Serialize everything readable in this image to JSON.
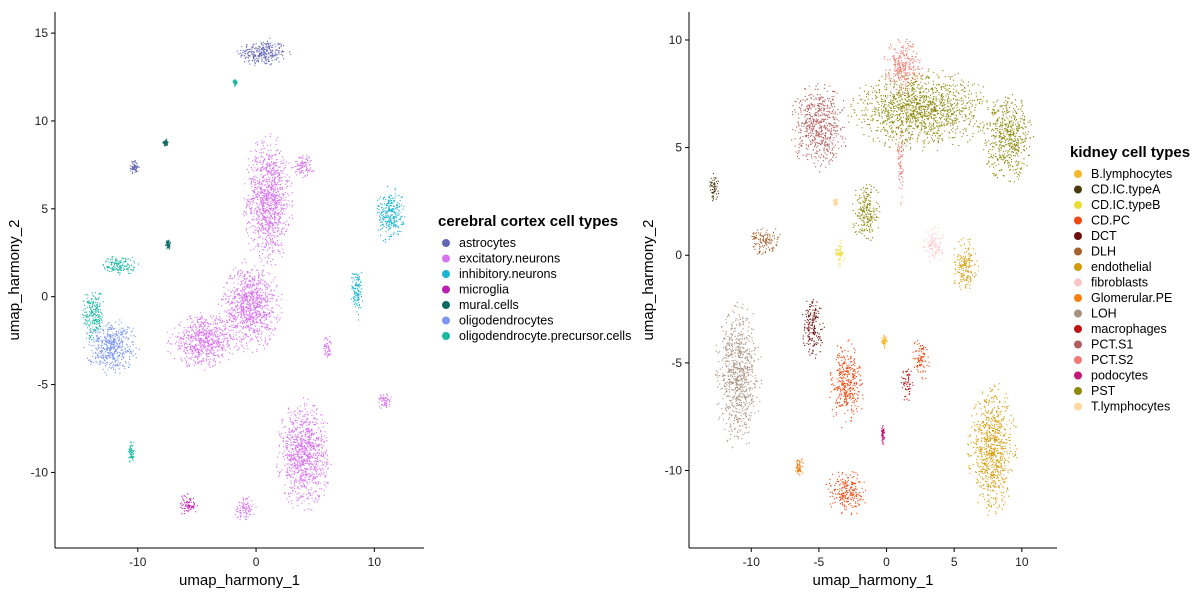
{
  "chart_data": [
    {
      "type": "scatter",
      "xlabel": "umap_harmony_1",
      "ylabel": "umap_harmony_2",
      "xlim": [
        -17,
        14.2
      ],
      "ylim": [
        -14.3,
        16.2
      ],
      "xticks": [
        -10,
        0,
        10
      ],
      "yticks": [
        -10,
        -5,
        0,
        5,
        10,
        15
      ],
      "grid": false,
      "legend": {
        "title": "cerebral cortex cell types",
        "placement": "right",
        "entries": [
          {
            "label": "astrocytes",
            "color": "#6366b6"
          },
          {
            "label": "excitatory.neurons",
            "color": "#d873ee"
          },
          {
            "label": "inhibitory.neurons",
            "color": "#1ab6d1"
          },
          {
            "label": "microglia",
            "color": "#bb1fb1"
          },
          {
            "label": "mural.cells",
            "color": "#0d6a64"
          },
          {
            "label": "oligodendrocytes",
            "color": "#7b96f3"
          },
          {
            "label": "oligodendrocyte.precursor.cells",
            "color": "#1bb8a2"
          }
        ]
      },
      "clusters": [
        {
          "cell_type": "astrocytes",
          "center": [
            0.5,
            13.9
          ],
          "spread": [
            2.2,
            0.8
          ]
        },
        {
          "cell_type": "astrocytes",
          "center": [
            -10.3,
            7.4
          ],
          "spread": [
            0.4,
            0.4
          ]
        },
        {
          "cell_type": "excitatory.neurons",
          "center": [
            1.0,
            5.5
          ],
          "spread": [
            2.0,
            3.5
          ]
        },
        {
          "cell_type": "excitatory.neurons",
          "center": [
            -0.5,
            -0.5
          ],
          "spread": [
            2.5,
            2.5
          ]
        },
        {
          "cell_type": "excitatory.neurons",
          "center": [
            -4.5,
            -2.5
          ],
          "spread": [
            3.0,
            1.5
          ]
        },
        {
          "cell_type": "excitatory.neurons",
          "center": [
            4.0,
            -9.0
          ],
          "spread": [
            2.2,
            3.0
          ]
        },
        {
          "cell_type": "excitatory.neurons",
          "center": [
            -1.0,
            -12.0
          ],
          "spread": [
            0.9,
            0.7
          ]
        },
        {
          "cell_type": "excitatory.neurons",
          "center": [
            4.0,
            7.5
          ],
          "spread": [
            1.0,
            0.7
          ]
        },
        {
          "cell_type": "excitatory.neurons",
          "center": [
            6.0,
            -2.9
          ],
          "spread": [
            0.4,
            0.7
          ]
        },
        {
          "cell_type": "excitatory.neurons",
          "center": [
            10.8,
            -5.9
          ],
          "spread": [
            0.6,
            0.5
          ]
        },
        {
          "cell_type": "inhibitory.neurons",
          "center": [
            11.3,
            4.7
          ],
          "spread": [
            1.2,
            1.6
          ]
        },
        {
          "cell_type": "inhibitory.neurons",
          "center": [
            8.5,
            0.3
          ],
          "spread": [
            0.5,
            1.5
          ]
        },
        {
          "cell_type": "microglia",
          "center": [
            -5.8,
            -11.8
          ],
          "spread": [
            0.8,
            0.6
          ]
        },
        {
          "cell_type": "mural.cells",
          "center": [
            -7.7,
            8.8
          ],
          "spread": [
            0.2,
            0.2
          ]
        },
        {
          "cell_type": "mural.cells",
          "center": [
            -7.5,
            3.0
          ],
          "spread": [
            0.2,
            0.3
          ]
        },
        {
          "cell_type": "oligodendrocytes",
          "center": [
            -12.3,
            -2.8
          ],
          "spread": [
            2.2,
            1.5
          ]
        },
        {
          "cell_type": "oligodendrocyte.precursor.cells",
          "center": [
            -13.8,
            -1.0
          ],
          "spread": [
            0.9,
            1.5
          ]
        },
        {
          "cell_type": "oligodendrocyte.precursor.cells",
          "center": [
            -11.5,
            1.8
          ],
          "spread": [
            1.6,
            0.6
          ]
        },
        {
          "cell_type": "oligodendrocyte.precursor.cells",
          "center": [
            -10.6,
            -8.8
          ],
          "spread": [
            0.3,
            0.7
          ]
        },
        {
          "cell_type": "oligodendrocyte.precursor.cells",
          "center": [
            -1.8,
            12.2
          ],
          "spread": [
            0.2,
            0.2
          ]
        }
      ]
    },
    {
      "type": "scatter",
      "xlabel": "umap_harmony_1",
      "ylabel": "umap_harmony_2",
      "xlim": [
        -14.6,
        12.6
      ],
      "ylim": [
        -13.6,
        11.3
      ],
      "xticks": [
        -10,
        -5,
        0,
        5,
        10
      ],
      "yticks": [
        -10,
        -5,
        0,
        5,
        10
      ],
      "grid": false,
      "legend": {
        "title": "kidney cell types",
        "placement": "right",
        "entries": [
          {
            "label": "B.lymphocytes",
            "color": "#f5b82a"
          },
          {
            "label": "CD.IC.typeA",
            "color": "#4a3b0e"
          },
          {
            "label": "CD.IC.typeB",
            "color": "#ebdd38"
          },
          {
            "label": "CD.PC",
            "color": "#f0470f"
          },
          {
            "label": "DCT",
            "color": "#6e0e0c"
          },
          {
            "label": "DLH",
            "color": "#a6612a"
          },
          {
            "label": "endothelial",
            "color": "#d49b08"
          },
          {
            "label": "fibroblasts",
            "color": "#fbc5c5"
          },
          {
            "label": "Glomerular.PE",
            "color": "#f57f0f"
          },
          {
            "label": "LOH",
            "color": "#a8917d"
          },
          {
            "label": "macrophages",
            "color": "#bf1414"
          },
          {
            "label": "PCT.S1",
            "color": "#b25d5d"
          },
          {
            "label": "PCT.S2",
            "color": "#f37a72"
          },
          {
            "label": "podocytes",
            "color": "#c21879"
          },
          {
            "label": "PST",
            "color": "#8e8a0b"
          },
          {
            "label": "T.lymphocytes",
            "color": "#fdd9a0"
          }
        ]
      },
      "clusters": [
        {
          "cell_type": "PCT.S1",
          "center": [
            -5.0,
            6.0
          ],
          "spread": [
            2.0,
            2.0
          ]
        },
        {
          "cell_type": "PST",
          "center": [
            2.5,
            6.8
          ],
          "spread": [
            5.0,
            1.8
          ]
        },
        {
          "cell_type": "PST",
          "center": [
            9.0,
            5.5
          ],
          "spread": [
            1.8,
            2.0
          ]
        },
        {
          "cell_type": "PCT.S2",
          "center": [
            1.2,
            8.8
          ],
          "spread": [
            1.4,
            1.2
          ]
        },
        {
          "cell_type": "PCT.S2",
          "center": [
            1.0,
            4.5
          ],
          "spread": [
            0.25,
            2.0
          ]
        },
        {
          "cell_type": "PST",
          "center": [
            -1.5,
            2.0
          ],
          "spread": [
            1.0,
            1.5
          ]
        },
        {
          "cell_type": "CD.IC.typeA",
          "center": [
            -12.8,
            3.2
          ],
          "spread": [
            0.4,
            0.6
          ]
        },
        {
          "cell_type": "DLH",
          "center": [
            -9.0,
            0.7
          ],
          "spread": [
            1.2,
            0.7
          ]
        },
        {
          "cell_type": "CD.IC.typeB",
          "center": [
            -3.5,
            0.1
          ],
          "spread": [
            0.4,
            0.6
          ]
        },
        {
          "cell_type": "fibroblasts",
          "center": [
            3.5,
            0.5
          ],
          "spread": [
            0.8,
            0.8
          ]
        },
        {
          "cell_type": "endothelial",
          "center": [
            5.8,
            -0.5
          ],
          "spread": [
            0.9,
            1.3
          ]
        },
        {
          "cell_type": "endothelial",
          "center": [
            7.8,
            -9.0
          ],
          "spread": [
            1.7,
            3.0
          ]
        },
        {
          "cell_type": "LOH",
          "center": [
            -11.0,
            -5.5
          ],
          "spread": [
            1.6,
            3.3
          ]
        },
        {
          "cell_type": "DCT",
          "center": [
            -5.5,
            -3.3
          ],
          "spread": [
            0.8,
            1.5
          ]
        },
        {
          "cell_type": "CD.PC",
          "center": [
            -3.0,
            -6.0
          ],
          "spread": [
            1.2,
            2.0
          ]
        },
        {
          "cell_type": "CD.PC",
          "center": [
            -3.0,
            -11.0
          ],
          "spread": [
            1.5,
            1.0
          ]
        },
        {
          "cell_type": "CD.PC",
          "center": [
            2.5,
            -4.8
          ],
          "spread": [
            0.6,
            1.0
          ]
        },
        {
          "cell_type": "macrophages",
          "center": [
            1.5,
            -6.0
          ],
          "spread": [
            0.5,
            0.8
          ]
        },
        {
          "cell_type": "Glomerular.PE",
          "center": [
            -6.5,
            -9.8
          ],
          "spread": [
            0.3,
            0.5
          ]
        },
        {
          "cell_type": "podocytes",
          "center": [
            -0.3,
            -8.3
          ],
          "spread": [
            0.15,
            0.5
          ]
        },
        {
          "cell_type": "B.lymphocytes",
          "center": [
            -0.2,
            -4.0
          ],
          "spread": [
            0.2,
            0.3
          ]
        },
        {
          "cell_type": "T.lymphocytes",
          "center": [
            -3.8,
            2.5
          ],
          "spread": [
            0.2,
            0.2
          ]
        }
      ]
    }
  ]
}
